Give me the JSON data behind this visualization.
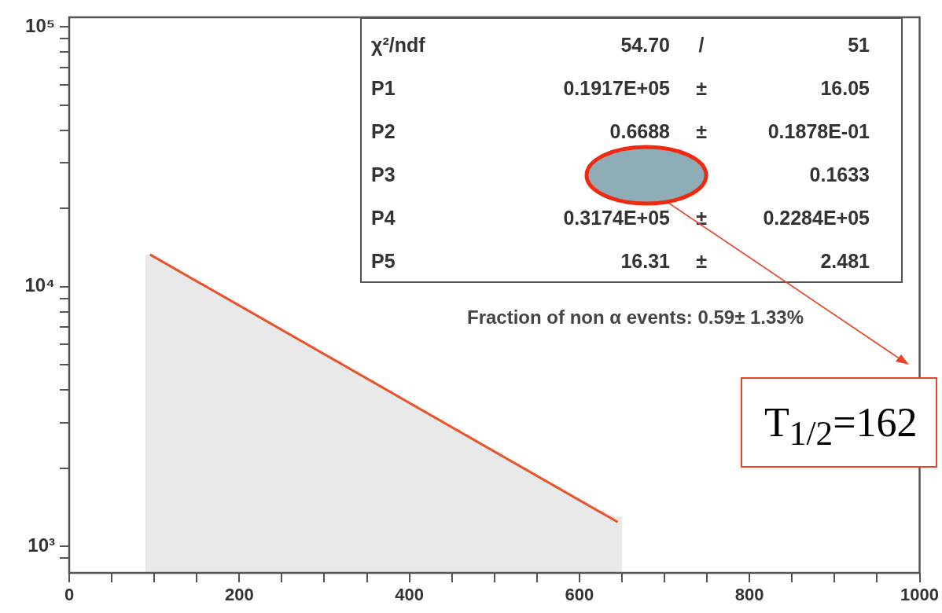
{
  "chart_data": {
    "type": "histogram",
    "log": "y",
    "grid": false,
    "legend": false,
    "bins": [
      90,
      100,
      110,
      120,
      130,
      140,
      150,
      160,
      170,
      180,
      190,
      200,
      210,
      220,
      230,
      240,
      250,
      260,
      270,
      280,
      290,
      300,
      310,
      320,
      330,
      340,
      350,
      360,
      370,
      380,
      390,
      400,
      410,
      420,
      430,
      440,
      450,
      460,
      470,
      480,
      490,
      500,
      510,
      520,
      530,
      540,
      550,
      560,
      570,
      580,
      590,
      600,
      610,
      620,
      630,
      640,
      650
    ],
    "values": [
      13300,
      12700,
      12250,
      11700,
      11150,
      10750,
      10300,
      9800,
      9450,
      9000,
      8650,
      8300,
      7900,
      7650,
      7250,
      7000,
      6650,
      6400,
      6150,
      5900,
      5550,
      5400,
      5200,
      4900,
      4750,
      4550,
      4350,
      4150,
      4000,
      3800,
      3650,
      3520,
      3350,
      3200,
      3100,
      2950,
      2850,
      2700,
      2620,
      2470,
      2380,
      2300,
      2170,
      2080,
      2010,
      1930,
      1830,
      1760,
      1700,
      1610,
      1540,
      1490,
      1420,
      1370,
      1320,
      1300
    ],
    "color": "#e9e9e9",
    "series": [
      {
        "type": "line",
        "x": [
          95,
          645
        ],
        "values": [
          13300,
          1240
        ],
        "color": "#e8532a"
      }
    ],
    "xlim": [
      0,
      1000
    ],
    "xticks": [
      0,
      {
        "value": 50,
        "label": null
      },
      {
        "value": 100,
        "label": null
      },
      {
        "value": 150,
        "label": null
      },
      200,
      {
        "value": 250,
        "label": null
      },
      {
        "value": 300,
        "label": null
      },
      {
        "value": 350,
        "label": null
      },
      400,
      {
        "value": 450,
        "label": null
      },
      {
        "value": 500,
        "label": null
      },
      {
        "value": 550,
        "label": null
      },
      600,
      {
        "value": 650,
        "label": null
      },
      {
        "value": 700,
        "label": null
      },
      {
        "value": 750,
        "label": null
      },
      800,
      {
        "value": 850,
        "label": null
      },
      {
        "value": 900,
        "label": null
      },
      {
        "value": 950,
        "label": null
      },
      1000
    ],
    "ylim": [
      790,
      109000
    ],
    "yticks": [
      {
        "value": 900,
        "label": null
      },
      {
        "value": 1000,
        "label": "10³"
      },
      {
        "value": 2000,
        "label": null
      },
      {
        "value": 3000,
        "label": null
      },
      {
        "value": 4000,
        "label": null
      },
      {
        "value": 5000,
        "label": null
      },
      {
        "value": 6000,
        "label": null
      },
      {
        "value": 7000,
        "label": null
      },
      {
        "value": 8000,
        "label": null
      },
      {
        "value": 9000,
        "label": null
      },
      {
        "value": 10000,
        "label": "10⁴"
      },
      {
        "value": 20000,
        "label": null
      },
      {
        "value": 30000,
        "label": null
      },
      {
        "value": 40000,
        "label": null
      },
      {
        "value": 50000,
        "label": null
      },
      {
        "value": 60000,
        "label": null
      },
      {
        "value": 70000,
        "label": null
      },
      {
        "value": 80000,
        "label": null
      },
      {
        "value": 90000,
        "label": null
      },
      {
        "value": 100000,
        "label": "10⁵"
      }
    ],
    "annotations": [
      "χ²/ndf 54.70 / 51",
      "P1 0.1917E+05 ± 16.05",
      "P2 0.6688 ± 0.1878E-01",
      "P3 ± 0.1633",
      "P4 0.3174E+05 ± 0.2284E+05",
      "P5 16.31 ± 2.481",
      "Fraction of non α events:  0.59± 1.33%",
      "T$_{1/2}$=162"
    ]
  }
}
